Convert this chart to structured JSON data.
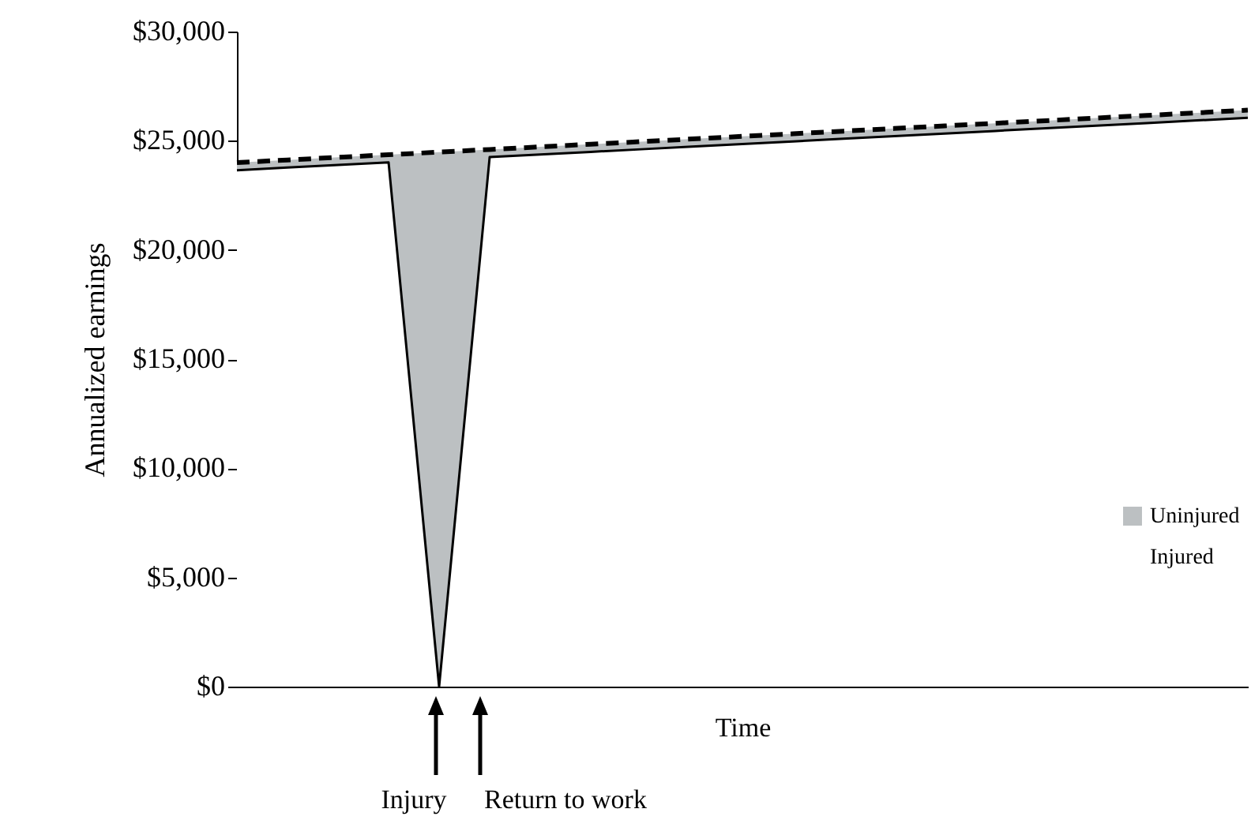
{
  "chart_data": {
    "type": "area",
    "xlabel": "Time",
    "ylabel": "Annualized earnings",
    "categories": [
      null,
      null,
      null,
      null,
      null,
      null,
      null,
      null,
      null,
      null,
      null,
      null,
      null,
      null,
      null,
      null,
      null,
      null,
      null,
      null,
      null
    ],
    "series": [
      {
        "name": "Uninjured",
        "color": "#bcc0c2",
        "line_style": "dashed",
        "values": [
          24000,
          24120,
          24240,
          24360,
          24480,
          24600,
          24720,
          24840,
          24960,
          25080,
          25200,
          25320,
          25440,
          25560,
          25680,
          25800,
          25920,
          26040,
          26160,
          26280,
          26400
        ]
      },
      {
        "name": "Injured",
        "color": "#ffffff",
        "line_style": "solid",
        "values": [
          23650,
          23770,
          23890,
          24010,
          0,
          24250,
          24370,
          24490,
          24610,
          24730,
          24850,
          24970,
          25090,
          25210,
          25330,
          25450,
          25570,
          25690,
          25810,
          25930,
          26050
        ]
      }
    ],
    "ylim": [
      0,
      30000
    ],
    "yticks": [
      {
        "value": 0,
        "label": "$0"
      },
      {
        "value": 5000,
        "label": "$5,000"
      },
      {
        "value": 10000,
        "label": "$10,000"
      },
      {
        "value": 15000,
        "label": "$15,000"
      },
      {
        "value": 20000,
        "label": "$20,000"
      },
      {
        "value": 25000,
        "label": "$25,000"
      },
      {
        "value": 30000,
        "label": "$30,000"
      }
    ],
    "annotations": [
      "Injury",
      "Return to work"
    ],
    "legend": "right",
    "grid": false
  }
}
